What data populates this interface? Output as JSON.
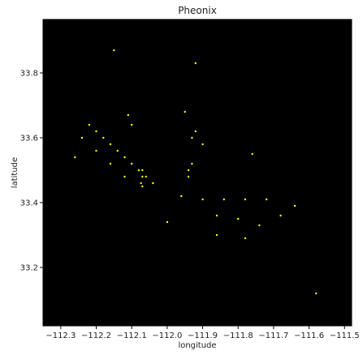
{
  "chart_data": {
    "type": "scatter",
    "title": "Pheonix",
    "xlabel": "longitude",
    "ylabel": "latitude",
    "xlim": [
      -112.35,
      -111.48
    ],
    "ylim": [
      33.02,
      33.965
    ],
    "x_ticks": [
      -112.3,
      -112.2,
      -112.1,
      -112.0,
      -111.9,
      -111.8,
      -111.7,
      -111.6,
      -111.5
    ],
    "x_tick_labels": [
      "−112.3",
      "−112.2",
      "−112.1",
      "−112.0",
      "−111.9",
      "−111.8",
      "−111.7",
      "−111.6",
      "−111.5"
    ],
    "y_ticks": [
      33.2,
      33.4,
      33.6,
      33.8
    ],
    "y_tick_labels": [
      "33.2",
      "33.4",
      "33.6",
      "33.8"
    ],
    "grid": false,
    "background_color": "#000000",
    "point_color": "#ffff00",
    "series": [
      {
        "points": [
          [
            -112.22,
            33.64
          ],
          [
            -112.2,
            33.62
          ],
          [
            -112.18,
            33.6
          ],
          [
            -112.16,
            33.58
          ],
          [
            -112.14,
            33.56
          ],
          [
            -112.12,
            33.54
          ],
          [
            -112.1,
            33.52
          ],
          [
            -112.08,
            33.5
          ],
          [
            -112.06,
            33.48
          ],
          [
            -112.04,
            33.46
          ],
          [
            -112.2,
            33.56
          ],
          [
            -112.16,
            33.52
          ],
          [
            -112.12,
            33.48
          ],
          [
            -112.24,
            33.6
          ],
          [
            -112.26,
            33.54
          ],
          [
            -112.07,
            33.45
          ],
          [
            -112.074,
            33.46
          ],
          [
            -112.07,
            33.48
          ],
          [
            -112.07,
            33.5
          ],
          [
            -111.94,
            33.5
          ],
          [
            -111.94,
            33.48
          ],
          [
            -111.93,
            33.52
          ],
          [
            -111.93,
            33.6
          ],
          [
            -111.92,
            33.62
          ],
          [
            -111.9,
            33.58
          ],
          [
            -111.96,
            33.42
          ],
          [
            -111.9,
            33.41
          ],
          [
            -111.84,
            33.41
          ],
          [
            -111.78,
            33.41
          ],
          [
            -111.72,
            33.41
          ],
          [
            -111.86,
            33.36
          ],
          [
            -111.8,
            33.35
          ],
          [
            -111.74,
            33.33
          ],
          [
            -111.68,
            33.36
          ],
          [
            -111.64,
            33.39
          ],
          [
            -112.1,
            33.64
          ],
          [
            -112.11,
            33.67
          ],
          [
            -111.92,
            33.83
          ],
          [
            -112.15,
            33.87
          ],
          [
            -112.0,
            33.34
          ],
          [
            -111.86,
            33.3
          ],
          [
            -111.78,
            33.29
          ],
          [
            -111.95,
            33.68
          ],
          [
            -111.76,
            33.55
          ],
          [
            -111.58,
            33.12
          ]
        ]
      }
    ]
  }
}
